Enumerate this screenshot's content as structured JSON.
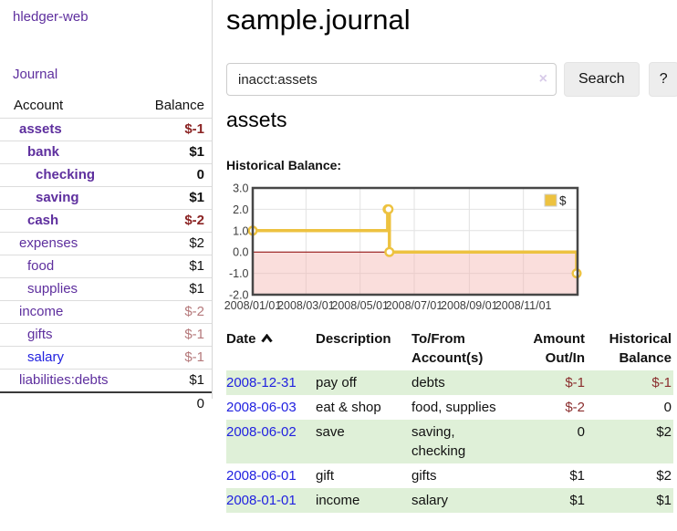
{
  "sidebar": {
    "brand": "hledger-web",
    "nav_journal": "Journal",
    "accounts_header": {
      "account": "Account",
      "balance": "Balance"
    },
    "accounts": [
      {
        "name": "assets",
        "depth": 0,
        "bold": true,
        "balance": "$-1",
        "neg": "strong"
      },
      {
        "name": "bank",
        "depth": 1,
        "bold": true,
        "balance": "$1"
      },
      {
        "name": "checking",
        "depth": 2,
        "bold": true,
        "balance": "0"
      },
      {
        "name": "saving",
        "depth": 2,
        "bold": true,
        "balance": "$1"
      },
      {
        "name": "cash",
        "depth": 1,
        "bold": true,
        "balance": "$-2",
        "neg": "strong"
      },
      {
        "name": "expenses",
        "depth": 0,
        "bold": false,
        "balance": "$2"
      },
      {
        "name": "food",
        "depth": 1,
        "bold": false,
        "balance": "$1"
      },
      {
        "name": "supplies",
        "depth": 1,
        "bold": false,
        "balance": "$1"
      },
      {
        "name": "income",
        "depth": 0,
        "bold": false,
        "balance": "$-2",
        "neg": "light"
      },
      {
        "name": "gifts",
        "depth": 1,
        "bold": false,
        "balance": "$-1",
        "neg": "light"
      },
      {
        "name": "salary",
        "depth": 1,
        "bold": false,
        "balance": "$-1",
        "neg": "light",
        "link": "blue"
      },
      {
        "name": "liabilities:debts",
        "depth": 0,
        "bold": false,
        "balance": "$1"
      }
    ],
    "total": "0"
  },
  "header": {
    "title": "sample.journal"
  },
  "search": {
    "query": "inacct:assets",
    "clear_icon": "×",
    "button_label": "Search",
    "help_label": "?"
  },
  "account_page": {
    "heading": "assets",
    "chart_label": "Historical Balance:"
  },
  "chart_data": {
    "type": "line",
    "title": "Historical Balance of assets",
    "step": true,
    "series": [
      {
        "name": "$",
        "x": [
          "2008-01-01",
          "2008-06-01",
          "2008-06-02",
          "2008-06-03",
          "2008-12-31"
        ],
        "y": [
          1,
          2,
          2,
          0,
          -1
        ]
      }
    ],
    "xlim": [
      "2008-01-01",
      "2009-01-01"
    ],
    "ylim": [
      -2,
      3
    ],
    "yticks": [
      3,
      2,
      1,
      0,
      -1,
      -2
    ],
    "ytick_labels": [
      "3.0",
      "2.0",
      "1.0",
      "0.0",
      "-1.0",
      "-2.0"
    ],
    "xticks": [
      "2008-01-01",
      "2008-03-01",
      "2008-05-01",
      "2008-07-01",
      "2008-09-01",
      "2008-11-01"
    ],
    "xtick_labels": [
      "2008/01/01",
      "2008/03/01",
      "2008/05/01",
      "2008/07/01",
      "2008/09/01",
      "2008/11/01"
    ],
    "legend": {
      "position": "top-right",
      "entries": [
        "$"
      ]
    },
    "grid": true,
    "colors": {
      "line": "#edc240",
      "marker_fill": "#ffffff",
      "negative_region": "#f4b6b2",
      "zero_line": "#8b0000",
      "border": "#474747",
      "gridline": "#e2e2e2",
      "tick_text": "#3c3c3c"
    }
  },
  "register": {
    "header": {
      "date": {
        "l1": "Date",
        "l2": ""
      },
      "description": {
        "l1": "Description",
        "l2": ""
      },
      "accounts": {
        "l1": "To/From",
        "l2": "Account(s)"
      },
      "amount": {
        "l1": "Amount",
        "l2": "Out/In"
      },
      "balance": {
        "l1": "Historical",
        "l2": "Balance"
      }
    },
    "rows": [
      {
        "date": "2008-12-31",
        "description": "pay off",
        "accounts": "debts",
        "amount": "$-1",
        "amount_neg": true,
        "balance": "$-1",
        "balance_neg": true
      },
      {
        "date": "2008-06-03",
        "description": "eat & shop",
        "accounts": "food, supplies",
        "amount": "$-2",
        "amount_neg": true,
        "balance": "0",
        "balance_neg": false
      },
      {
        "date": "2008-06-02",
        "description": "save",
        "accounts": "saving, checking",
        "amount": "0",
        "amount_neg": false,
        "balance": "$2",
        "balance_neg": false
      },
      {
        "date": "2008-06-01",
        "description": "gift",
        "accounts": "gifts",
        "amount": "$1",
        "amount_neg": false,
        "balance": "$2",
        "balance_neg": false
      },
      {
        "date": "2008-01-01",
        "description": "income",
        "accounts": "salary",
        "amount": "$1",
        "amount_neg": false,
        "balance": "$1",
        "balance_neg": false
      }
    ]
  }
}
